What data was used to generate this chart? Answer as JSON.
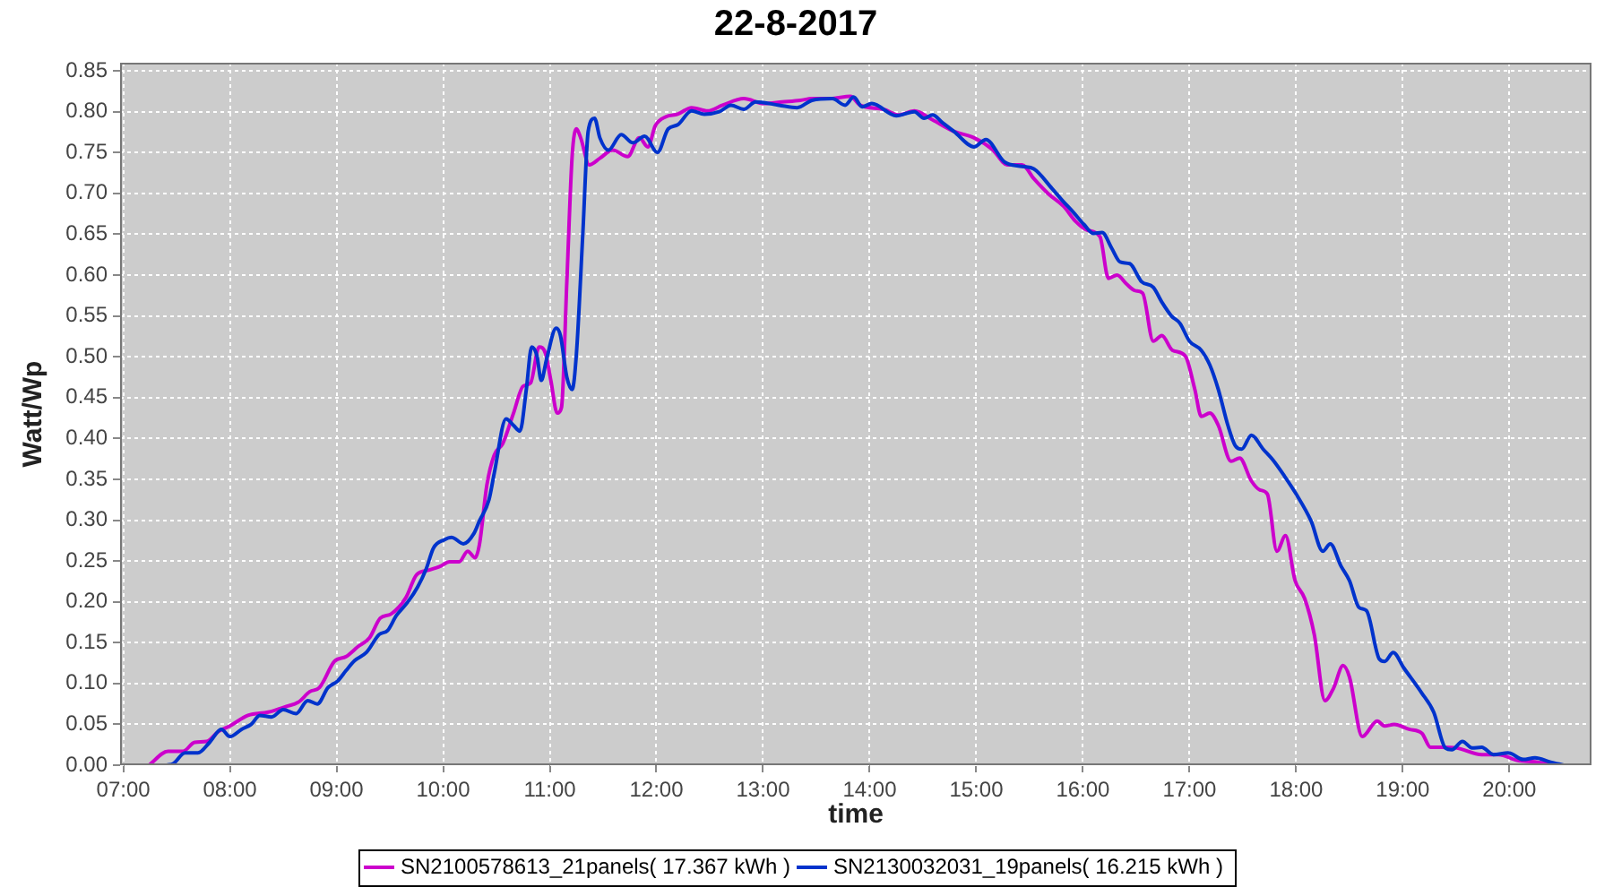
{
  "chart_data": {
    "type": "line",
    "title": "22-8-2017",
    "xlabel": "time",
    "ylabel": "Watt/Wp",
    "grid": true,
    "legend": "bottom",
    "line_style": "solid",
    "xlim": [
      6.97,
      20.77
    ],
    "xticks": [
      {
        "value": 7,
        "label": "07:00"
      },
      {
        "value": 8,
        "label": "08:00"
      },
      {
        "value": 9,
        "label": "09:00"
      },
      {
        "value": 10,
        "label": "10:00"
      },
      {
        "value": 11,
        "label": "11:00"
      },
      {
        "value": 12,
        "label": "12:00"
      },
      {
        "value": 13,
        "label": "13:00"
      },
      {
        "value": 14,
        "label": "14:00"
      },
      {
        "value": 15,
        "label": "15:00"
      },
      {
        "value": 16,
        "label": "16:00"
      },
      {
        "value": 17,
        "label": "17:00"
      },
      {
        "value": 18,
        "label": "18:00"
      },
      {
        "value": 19,
        "label": "19:00"
      },
      {
        "value": 20,
        "label": "20:00"
      }
    ],
    "ylim": [
      0,
      0.86
    ],
    "yticks": [
      {
        "value": 0,
        "label": "0.00"
      },
      0.05,
      {
        "value": 0.1,
        "label": "0.10"
      },
      0.15,
      {
        "value": 0.2,
        "label": "0.20"
      },
      0.25,
      {
        "value": 0.3,
        "label": "0.30"
      },
      0.35,
      {
        "value": 0.4,
        "label": "0.40"
      },
      0.45,
      {
        "value": 0.5,
        "label": "0.50"
      },
      0.55,
      {
        "value": 0.6,
        "label": "0.60"
      },
      0.65,
      {
        "value": 0.7,
        "label": "0.70"
      },
      0.75,
      {
        "value": 0.8,
        "label": "0.80"
      },
      0.85
    ],
    "series": [
      {
        "name": "SN2100578613_21panels( 17.367 kWh )",
        "color": "#cc00cc",
        "x": [
          7.24,
          7.42,
          7.56,
          7.67,
          7.78,
          7.89,
          8.0,
          8.17,
          8.36,
          8.53,
          8.64,
          8.75,
          8.84,
          8.98,
          9.09,
          9.2,
          9.31,
          9.41,
          9.51,
          9.65,
          9.75,
          9.87,
          9.98,
          10.06,
          10.15,
          10.23,
          10.3,
          10.34,
          10.41,
          10.48,
          10.56,
          10.66,
          10.75,
          10.82,
          10.9,
          10.96,
          11.01,
          11.07,
          11.11,
          11.16,
          11.21,
          11.25,
          11.29,
          11.37,
          11.47,
          11.59,
          11.73,
          11.84,
          11.92,
          11.99,
          12.09,
          12.2,
          12.33,
          12.48,
          12.62,
          12.82,
          13.01,
          13.18,
          13.35,
          13.46,
          13.63,
          13.82,
          13.91,
          14.13,
          14.27,
          14.42,
          14.59,
          14.79,
          14.98,
          15.15,
          15.29,
          15.43,
          15.54,
          15.68,
          15.82,
          15.93,
          16.04,
          16.16,
          16.24,
          16.32,
          16.41,
          16.49,
          16.56,
          16.66,
          16.74,
          16.84,
          16.96,
          17.05,
          17.11,
          17.19,
          17.27,
          17.39,
          17.47,
          17.58,
          17.66,
          17.73,
          17.82,
          17.9,
          17.99,
          18.08,
          18.17,
          18.27,
          18.35,
          18.44,
          18.5,
          18.62,
          18.76,
          18.83,
          18.92,
          19.06,
          19.18,
          19.26,
          19.37,
          19.51,
          19.74,
          19.9,
          20.07,
          20.24,
          20.45
        ],
        "values": [
          0,
          0.017,
          0.017,
          0.028,
          0.029,
          0.041,
          0.048,
          0.061,
          0.065,
          0.072,
          0.077,
          0.09,
          0.095,
          0.127,
          0.133,
          0.145,
          0.156,
          0.18,
          0.185,
          0.205,
          0.233,
          0.239,
          0.244,
          0.249,
          0.249,
          0.262,
          0.254,
          0.27,
          0.343,
          0.38,
          0.394,
          0.431,
          0.464,
          0.468,
          0.512,
          0.504,
          0.471,
          0.431,
          0.438,
          0.592,
          0.746,
          0.779,
          0.768,
          0.735,
          0.743,
          0.753,
          0.745,
          0.768,
          0.757,
          0.783,
          0.794,
          0.797,
          0.805,
          0.801,
          0.808,
          0.816,
          0.81,
          0.812,
          0.814,
          0.816,
          0.816,
          0.819,
          0.808,
          0.803,
          0.796,
          0.801,
          0.79,
          0.776,
          0.768,
          0.754,
          0.735,
          0.735,
          0.718,
          0.699,
          0.684,
          0.666,
          0.655,
          0.647,
          0.596,
          0.6,
          0.589,
          0.581,
          0.578,
          0.519,
          0.526,
          0.508,
          0.501,
          0.46,
          0.427,
          0.431,
          0.416,
          0.372,
          0.376,
          0.348,
          0.337,
          0.332,
          0.262,
          0.281,
          0.226,
          0.204,
          0.16,
          0.079,
          0.094,
          0.122,
          0.108,
          0.035,
          0.054,
          0.048,
          0.05,
          0.044,
          0.039,
          0.022,
          0.022,
          0.021,
          0.013,
          0.013,
          0.006,
          0.004,
          0
        ]
      },
      {
        "name": "SN2130032031_19panels( 16.215 kWh )",
        "color": "#0033cc",
        "x": [
          7.41,
          7.47,
          7.58,
          7.7,
          7.81,
          7.92,
          8.0,
          8.11,
          8.2,
          8.28,
          8.39,
          8.5,
          8.62,
          8.73,
          8.82,
          8.92,
          9.01,
          9.09,
          9.17,
          9.28,
          9.4,
          9.48,
          9.56,
          9.67,
          9.76,
          9.84,
          9.91,
          10.01,
          10.08,
          10.19,
          10.29,
          10.34,
          10.43,
          10.48,
          10.59,
          10.66,
          10.72,
          10.78,
          10.83,
          10.88,
          10.92,
          10.97,
          11.06,
          11.1,
          11.16,
          11.21,
          11.25,
          11.31,
          11.36,
          11.42,
          11.47,
          11.55,
          11.67,
          11.78,
          11.89,
          12.01,
          12.11,
          12.2,
          12.33,
          12.45,
          12.59,
          12.7,
          12.82,
          12.93,
          13.15,
          13.32,
          13.46,
          13.65,
          13.77,
          13.85,
          13.93,
          14.02,
          14.25,
          14.42,
          14.51,
          14.59,
          14.68,
          14.79,
          14.98,
          15.09,
          15.26,
          15.43,
          15.54,
          15.71,
          15.81,
          15.91,
          16.01,
          16.1,
          16.18,
          16.27,
          16.35,
          16.44,
          16.55,
          16.66,
          16.74,
          16.83,
          16.91,
          17.0,
          17.11,
          17.19,
          17.27,
          17.36,
          17.43,
          17.49,
          17.58,
          17.69,
          17.78,
          17.89,
          18.0,
          18.14,
          18.25,
          18.32,
          18.42,
          18.5,
          18.59,
          18.66,
          18.78,
          18.83,
          18.91,
          19.01,
          19.18,
          19.29,
          19.4,
          19.46,
          19.56,
          19.65,
          19.74,
          19.85,
          19.99,
          20.13,
          20.24,
          20.38,
          20.51
        ],
        "values": [
          0,
          0.002,
          0.015,
          0.015,
          0.028,
          0.044,
          0.035,
          0.044,
          0.05,
          0.061,
          0.059,
          0.068,
          0.063,
          0.079,
          0.075,
          0.095,
          0.103,
          0.116,
          0.128,
          0.138,
          0.16,
          0.165,
          0.183,
          0.2,
          0.218,
          0.24,
          0.266,
          0.276,
          0.279,
          0.271,
          0.284,
          0.299,
          0.325,
          0.358,
          0.424,
          0.416,
          0.409,
          0.46,
          0.512,
          0.501,
          0.471,
          0.497,
          0.535,
          0.526,
          0.475,
          0.46,
          0.504,
          0.651,
          0.776,
          0.792,
          0.768,
          0.753,
          0.772,
          0.762,
          0.77,
          0.75,
          0.779,
          0.784,
          0.801,
          0.797,
          0.8,
          0.808,
          0.803,
          0.812,
          0.808,
          0.805,
          0.814,
          0.816,
          0.808,
          0.818,
          0.806,
          0.81,
          0.795,
          0.8,
          0.792,
          0.796,
          0.787,
          0.776,
          0.757,
          0.766,
          0.739,
          0.733,
          0.73,
          0.706,
          0.691,
          0.677,
          0.662,
          0.651,
          0.652,
          0.633,
          0.616,
          0.614,
          0.592,
          0.585,
          0.567,
          0.55,
          0.541,
          0.519,
          0.508,
          0.49,
          0.46,
          0.416,
          0.391,
          0.387,
          0.404,
          0.387,
          0.374,
          0.354,
          0.332,
          0.299,
          0.262,
          0.271,
          0.244,
          0.226,
          0.193,
          0.189,
          0.13,
          0.127,
          0.138,
          0.119,
          0.088,
          0.065,
          0.021,
          0.019,
          0.029,
          0.021,
          0.022,
          0.013,
          0.015,
          0.007,
          0.009,
          0.004,
          0
        ]
      }
    ]
  }
}
